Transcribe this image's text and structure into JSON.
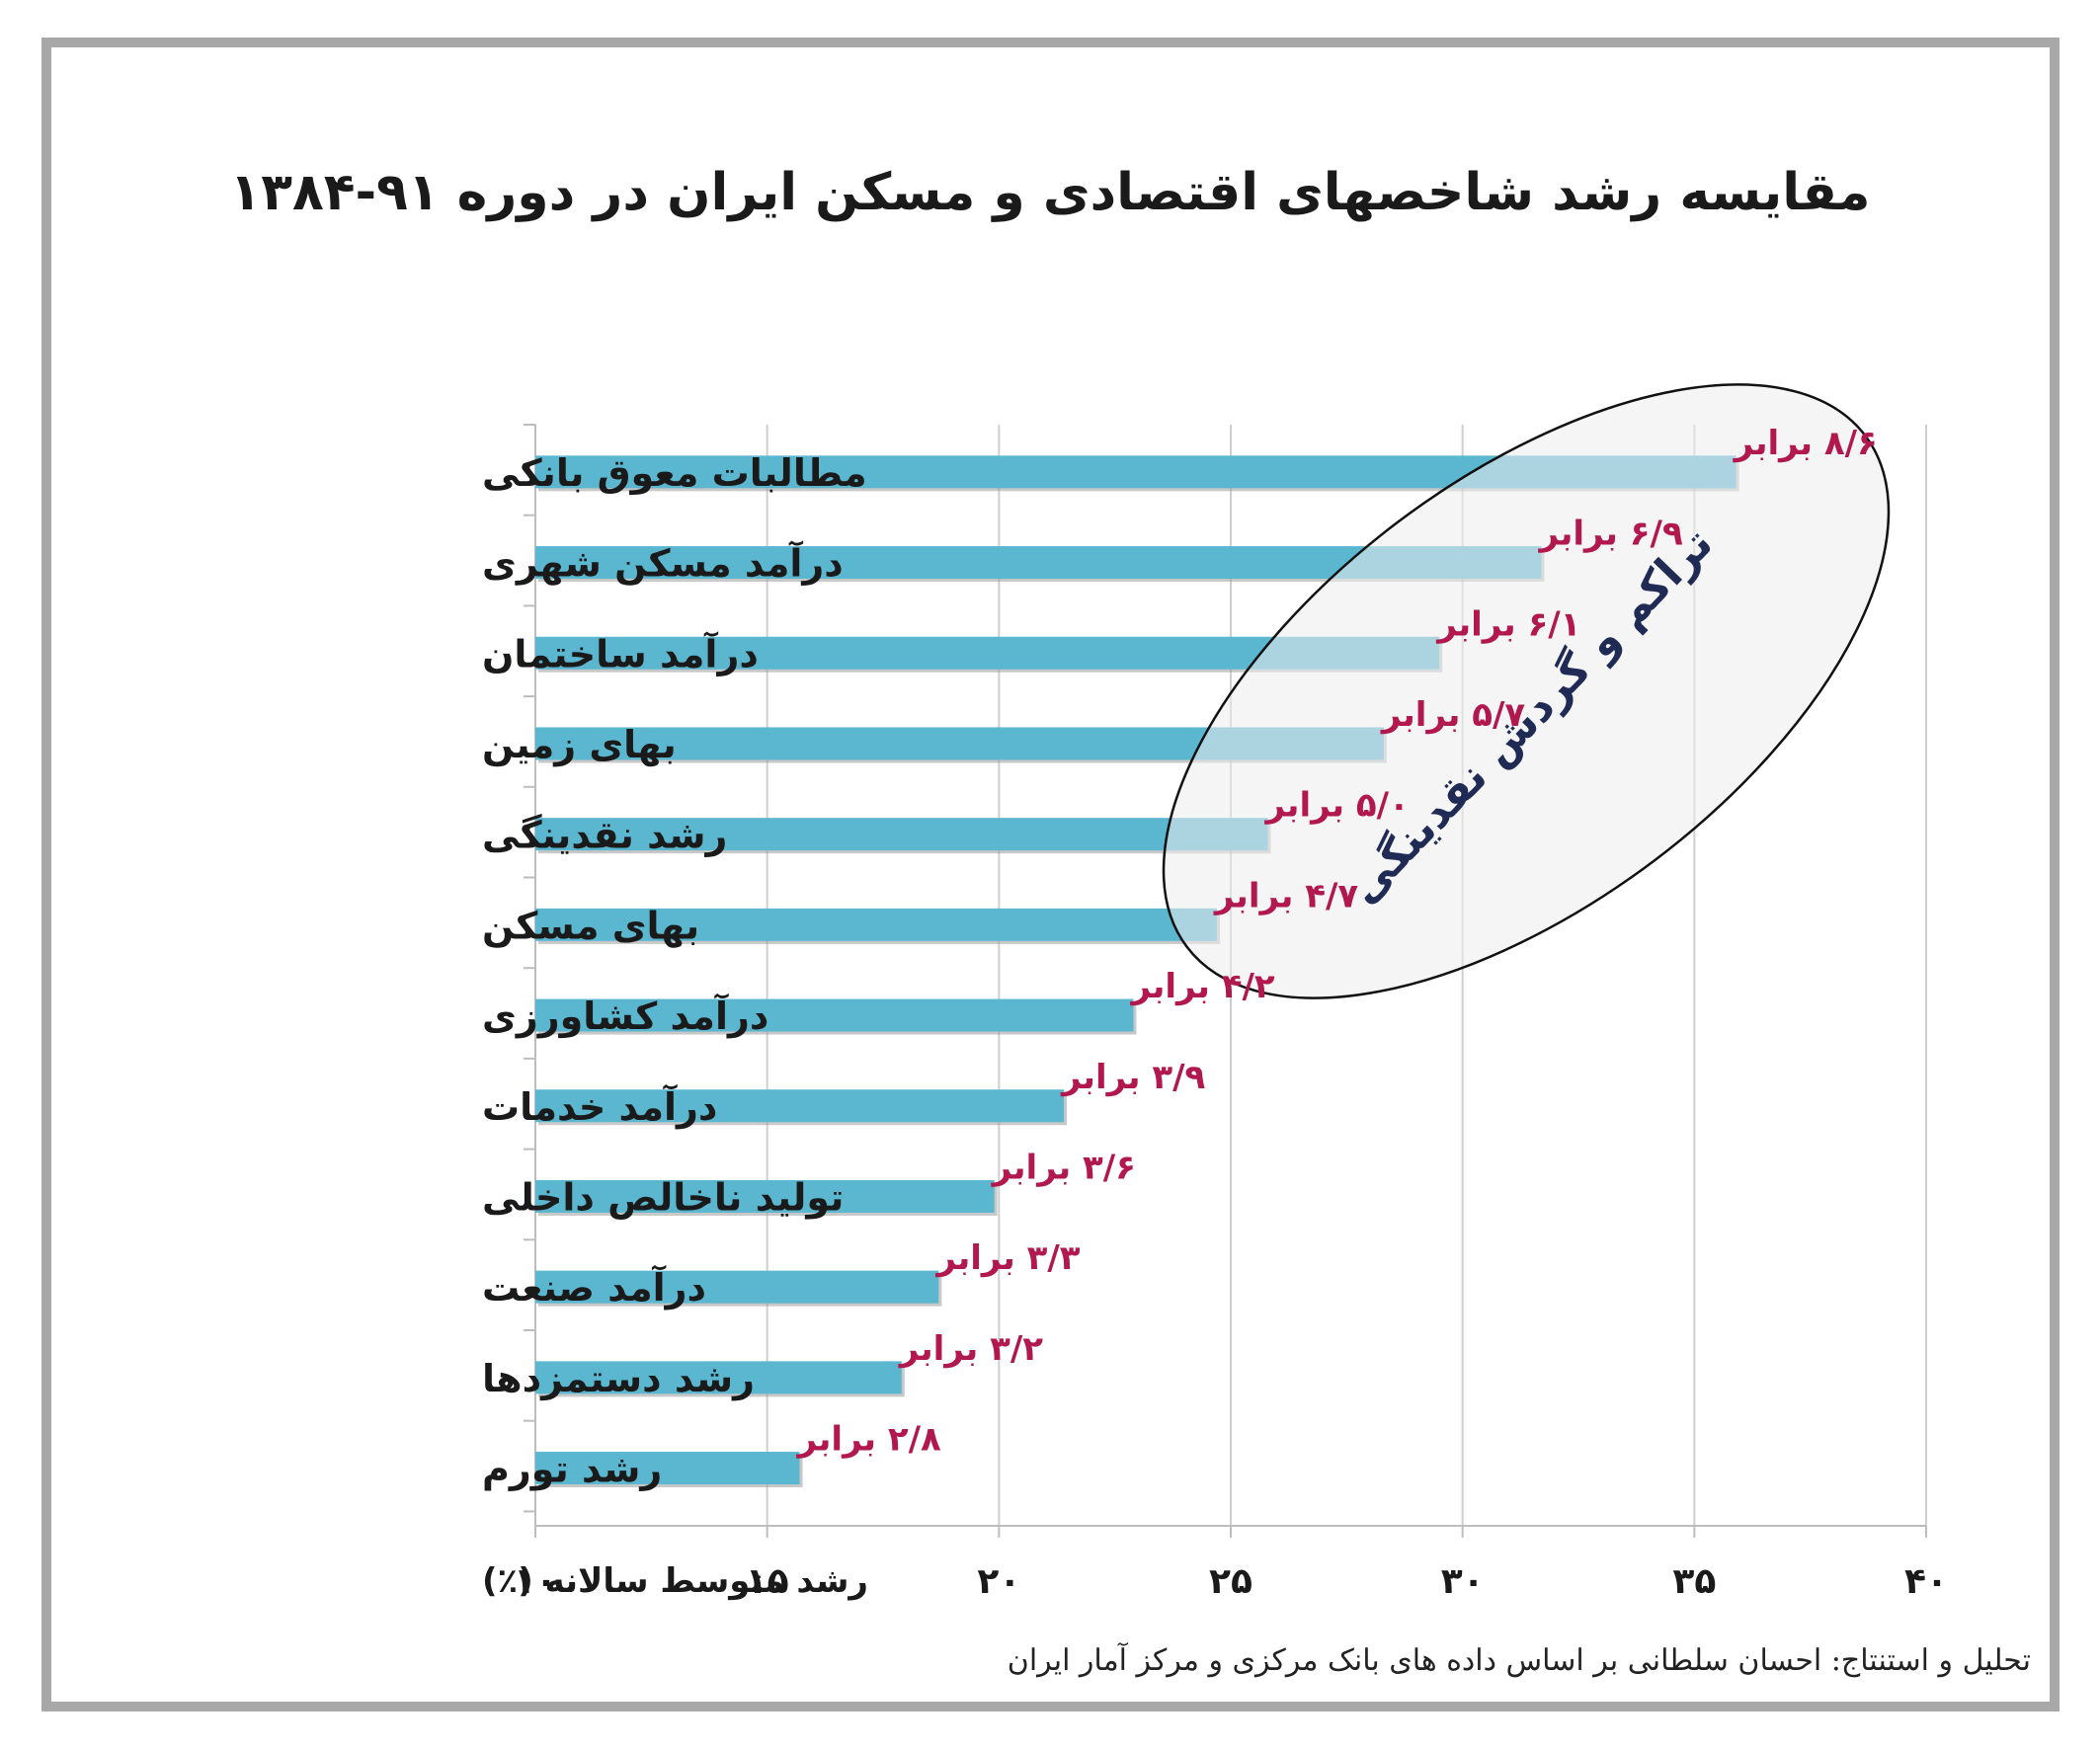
{
  "title": "مقایسه رشد شاخصهای اقتصادی و مسکن ایران در دوره ۹۱-۱۳۸۴",
  "source": "تحلیل و استنتاج: احسان سلطانی بر اساس داده های بانک مرکزی و مرکز آمار ایران",
  "annotation": "تراکم و گردش نقدینگی",
  "colors": {
    "bar": "#5bb7d0",
    "bar_shadow": "#9a9a9a",
    "label": "#b0184e",
    "ellipse_fill": "#ececec",
    "annotation": "#1f2a55"
  },
  "chart_data": {
    "type": "bar",
    "orientation": "horizontal",
    "categories": [
      "مطالبات معوق بانکی",
      "درآمد مسکن شهری",
      "درآمد ساختمان",
      "بهای زمین",
      "رشد نقدینگی",
      "بهای مسکن",
      "درآمد کشاورزی",
      "درآمد خدمات",
      "تولید ناخالص داخلی",
      "درآمد صنعت",
      "رشد دستمزدها",
      "رشد تورم"
    ],
    "values": [
      35.9,
      31.7,
      29.5,
      28.3,
      25.8,
      24.7,
      22.9,
      21.4,
      19.9,
      18.7,
      17.9,
      15.7
    ],
    "data_labels": [
      "۸/۶ برابر",
      "۶/۹ برابر",
      "۶/۱ برابر",
      "۵/۷ برابر",
      "۵/۰ برابر",
      "۴/۷ برابر",
      "۴/۲ برابر",
      "۳/۹ برابر",
      "۳/۶ برابر",
      "۳/۳ برابر",
      "۳/۲ برابر",
      "۲/۸ برابر"
    ],
    "xlim": [
      10,
      40
    ],
    "xticks": [
      10,
      15,
      20,
      25,
      30,
      35,
      40
    ],
    "xtick_labels": [
      "۱۰",
      "۱۵",
      "۲۰",
      "۲۵",
      "۳۰",
      "۳۵",
      "۴۰"
    ],
    "xlabel": "رشد متوسط سالانه (٪)",
    "grid": true,
    "legend": false
  }
}
